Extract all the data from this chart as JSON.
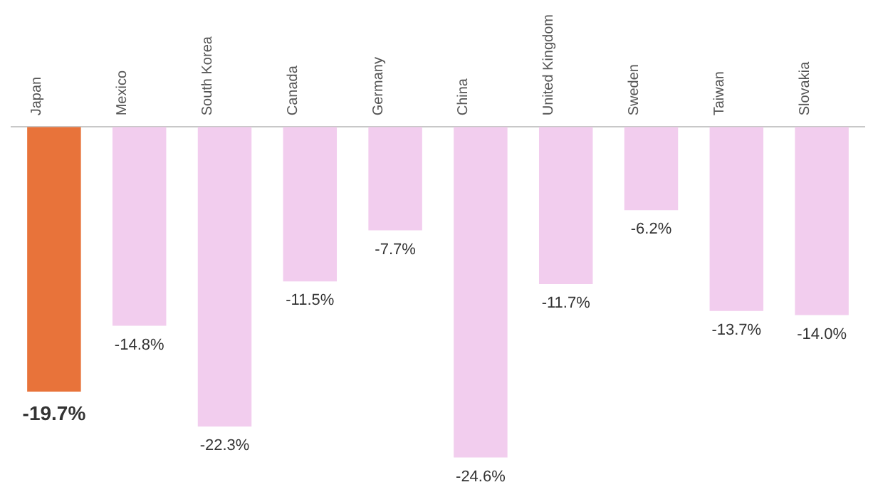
{
  "chart_data": {
    "type": "bar",
    "categories": [
      "Japan",
      "Mexico",
      "South Korea",
      "Canada",
      "Germany",
      "China",
      "United Kingdom",
      "Sweden",
      "Taiwan",
      "Slovakia"
    ],
    "values": [
      -19.7,
      -14.8,
      -22.3,
      -11.5,
      -7.7,
      -24.6,
      -11.7,
      -6.2,
      -13.7,
      -14.0
    ],
    "colors": [
      "#e8733a",
      "#f2cdee",
      "#f2cdee",
      "#f2cdee",
      "#f2cdee",
      "#f2cdee",
      "#f2cdee",
      "#f2cdee",
      "#f2cdee",
      "#f2cdee"
    ],
    "value_labels": [
      "-19.7%",
      "-14.8%",
      "-22.3%",
      "-11.5%",
      "-7.7%",
      "-24.6%",
      "-11.7%",
      "-6.2%",
      "-13.7%",
      "-14.0%"
    ],
    "tick_labels": "x",
    "grid": false,
    "legend": false
  }
}
